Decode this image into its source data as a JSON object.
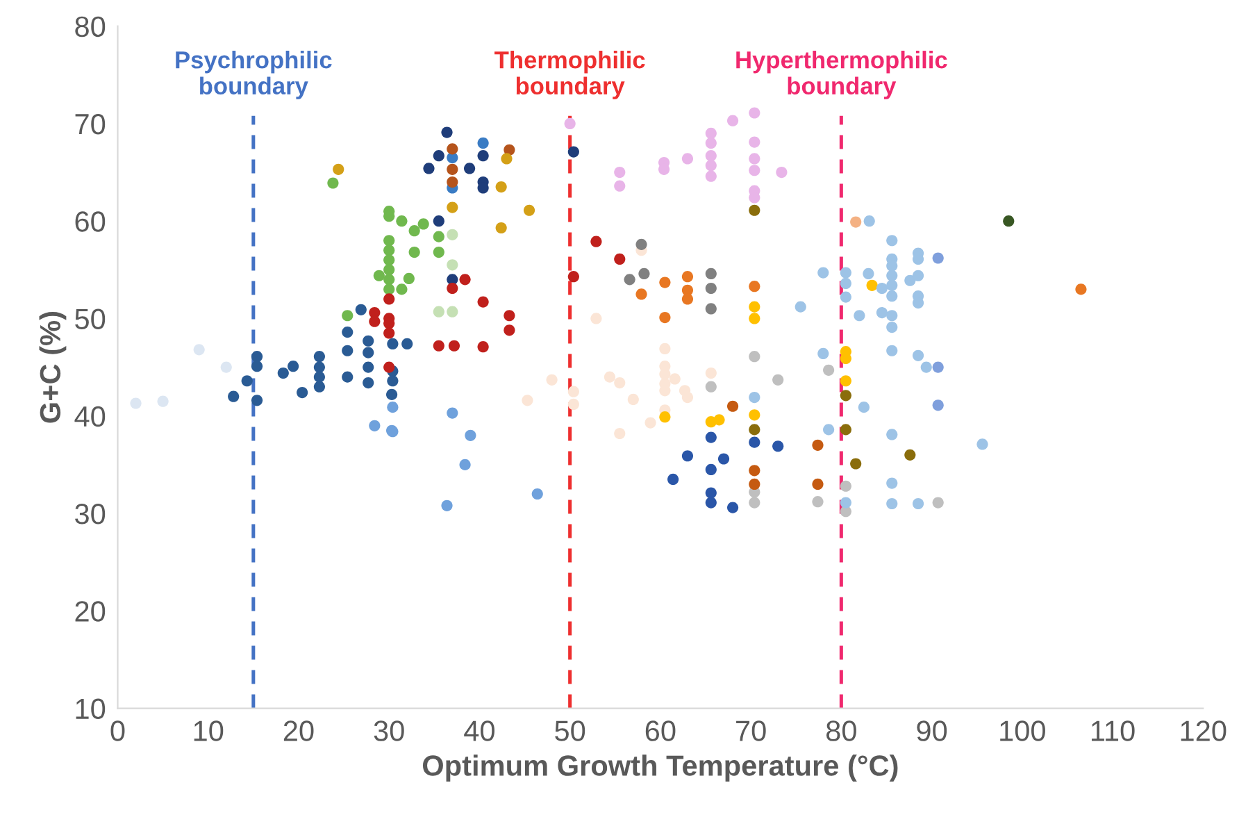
{
  "chart_data": {
    "type": "scatter",
    "xlabel": "Optimum Growth Temperature (°C)",
    "ylabel": "G+C (%)",
    "xlim": [
      0,
      120
    ],
    "ylim": [
      10,
      80
    ],
    "xticks": [
      0,
      10,
      20,
      30,
      40,
      50,
      60,
      70,
      80,
      90,
      100,
      110,
      120
    ],
    "yticks": [
      10,
      20,
      30,
      40,
      50,
      60,
      70,
      80
    ],
    "grid": false,
    "marker": "circle",
    "ref_lines": [
      {
        "axis": "x",
        "value": 15,
        "label": "Psychrophilic\nboundary",
        "color": "#4472c4",
        "line_style": "dashed"
      },
      {
        "axis": "x",
        "value": 50,
        "label": "Thermophilic\nboundary",
        "color": "#ee2f2f",
        "line_style": "dashed"
      },
      {
        "axis": "x",
        "value": 80,
        "label": "Hyperthermophilic\nboundary",
        "color": "#f0286e",
        "line_style": "dashed"
      }
    ],
    "series": [
      {
        "color": "#dce6f2",
        "x": [
          2,
          5,
          9,
          12
        ],
        "values": [
          41.3,
          41.5,
          46.8,
          45
        ]
      },
      {
        "color": "#2a5b94",
        "x": [
          12.8,
          14.3,
          15.4,
          15.4,
          15.4,
          18.3,
          19.4,
          20.4,
          22.3,
          22.3,
          22.3,
          22.3,
          25.4,
          25.4,
          25.4,
          26.9,
          27.7,
          27.7,
          27.7,
          27.7,
          30.3,
          30.4,
          32,
          30.4,
          30.4
        ],
        "values": [
          42,
          43.6,
          46.1,
          45.1,
          41.6,
          44.4,
          45.1,
          42.4,
          46.1,
          45,
          44,
          43,
          48.6,
          46.7,
          44,
          50.9,
          47.7,
          46.5,
          45,
          43.4,
          42.2,
          47.4,
          47.4,
          44.6,
          43.6
        ]
      },
      {
        "color": "#1f3d7a",
        "x": [
          36.4,
          35.5,
          34.4,
          38.9,
          40.4,
          40.4,
          40.4,
          35.5,
          50.4,
          37
        ],
        "values": [
          69.1,
          66.7,
          65.4,
          65.4,
          66.7,
          64,
          63.4,
          60,
          67.1,
          54
        ]
      },
      {
        "color": "#3a7cc4",
        "x": [
          40.4,
          37,
          37
        ],
        "values": [
          68,
          66.5,
          63.4
        ]
      },
      {
        "color": "#b5541c",
        "x": [
          37,
          43.3,
          37,
          37
        ],
        "values": [
          67.4,
          67.3,
          65.3,
          64
        ]
      },
      {
        "color": "#d4a017",
        "x": [
          43,
          42.4,
          37,
          45.5,
          42.4,
          24.4
        ],
        "values": [
          66.4,
          63.5,
          61.4,
          61.1,
          59.3,
          65.3
        ]
      },
      {
        "color": "#70b84e",
        "x": [
          23.8,
          28.9,
          25.4,
          30,
          30,
          30,
          30,
          30,
          30,
          30,
          30,
          31.4,
          32.8,
          33.8,
          35.5,
          32.8,
          35.5,
          32.2,
          31.4
        ],
        "values": [
          63.9,
          54.4,
          50.3,
          61,
          60.5,
          58,
          57,
          56,
          55,
          54,
          53,
          60,
          59,
          59.7,
          58.4,
          56.8,
          56.8,
          54.1,
          53
        ]
      },
      {
        "color": "#c5e0b4",
        "x": [
          37,
          37,
          35.5,
          37
        ],
        "values": [
          58.6,
          55.5,
          50.7,
          50.7
        ]
      },
      {
        "color": "#c0201c",
        "x": [
          30,
          30,
          30,
          30,
          30,
          28.4,
          28.4,
          38.4,
          37,
          40.4,
          43.3,
          43.3,
          35.5,
          37.2,
          40.4,
          50.4,
          52.9,
          55.5
        ],
        "values": [
          52,
          50,
          49.5,
          48.5,
          45,
          50.6,
          49.7,
          54,
          53.1,
          51.7,
          50.3,
          48.8,
          47.2,
          47.2,
          47.1,
          54.3,
          57.9,
          56.1
        ]
      },
      {
        "color": "#6fa1dc",
        "x": [
          28.4,
          30.3,
          37,
          39,
          38.4,
          46.4,
          36.4,
          30.4,
          30.4
        ],
        "values": [
          39,
          38.5,
          40.3,
          38,
          35,
          32,
          30.8,
          40.9,
          38.4
        ]
      },
      {
        "color": "#e8b4e8",
        "x": [
          50,
          55.5,
          55.5,
          60.4,
          60.4,
          63,
          65.6,
          65.6,
          65.6,
          65.6,
          65.6,
          68,
          70.4,
          70.4,
          70.4,
          70.4,
          70.4,
          70.4,
          73.4
        ],
        "values": [
          70,
          65,
          63.6,
          66,
          65.3,
          66.4,
          69,
          68,
          66.7,
          65.7,
          64.6,
          70.3,
          71.1,
          68.1,
          66.4,
          65.2,
          63.1,
          62.4,
          65
        ]
      },
      {
        "color": "#fbe5d6",
        "x": [
          52.9,
          45.3,
          48,
          50.4,
          50.4,
          54.4,
          55.5,
          55.5,
          57,
          58.9,
          60.5,
          60.5,
          60.5,
          60.5,
          60.5,
          60.5,
          61.6,
          62.7,
          63,
          65.6,
          57.9
        ],
        "values": [
          50,
          41.6,
          43.7,
          42.5,
          41.2,
          44,
          43.4,
          38.2,
          41.7,
          39.3,
          46.9,
          45.1,
          44.3,
          43.3,
          42.6,
          40.6,
          43.8,
          42.6,
          41.9,
          44.4,
          57
        ]
      },
      {
        "color": "#808080",
        "x": [
          57.9,
          56.6,
          58.2,
          65.6,
          65.6,
          65.6
        ],
        "values": [
          57.6,
          54,
          54.6,
          54.6,
          53.1,
          51
        ]
      },
      {
        "color": "#e87722",
        "x": [
          60.5,
          57.9,
          63,
          63,
          63,
          60.5,
          70.4,
          106.5
        ],
        "values": [
          53.7,
          52.5,
          54.3,
          52.9,
          52,
          50.1,
          53.3,
          53
        ]
      },
      {
        "color": "#f4b183",
        "x": [
          81.6
        ],
        "values": [
          59.9
        ]
      },
      {
        "color": "#ffc000",
        "x": [
          70.4,
          70.4,
          60.5,
          65.6,
          66.5,
          70.4,
          80.5,
          80.5,
          80.5,
          83.4
        ],
        "values": [
          51.2,
          50,
          39.9,
          39.4,
          39.6,
          40.1,
          46.6,
          45.9,
          43.6,
          53.4
        ]
      },
      {
        "color": "#8a6d0b",
        "x": [
          70.4,
          70.4,
          80.5,
          80.5,
          81.6,
          87.6
        ],
        "values": [
          61.1,
          38.6,
          42.1,
          38.6,
          35.1,
          36
        ]
      },
      {
        "color": "#bfbfbf",
        "x": [
          70.4,
          73,
          65.6,
          78.6,
          70.4,
          70.4,
          77.4,
          80.5,
          80.5,
          90.7
        ],
        "values": [
          46.1,
          43.7,
          43,
          44.7,
          32.2,
          31.1,
          31.2,
          32.8,
          30.2,
          31.1
        ]
      },
      {
        "color": "#2a56a8",
        "x": [
          65.6,
          63,
          61.4,
          65.6,
          67,
          65.6,
          65.6,
          68,
          70.4,
          73
        ],
        "values": [
          37.8,
          35.9,
          33.5,
          34.5,
          35.6,
          32.1,
          31.1,
          30.6,
          37.3,
          36.9
        ]
      },
      {
        "color": "#c55a11",
        "x": [
          68,
          77.4,
          70.4,
          70.4,
          77.4
        ],
        "values": [
          41,
          37,
          34.4,
          33,
          33
        ]
      },
      {
        "color": "#9dc3e6",
        "x": [
          75.5,
          70.4,
          82.5,
          83.1,
          85.6,
          88.5,
          88.5,
          85.6,
          85.6,
          85.6,
          78,
          80.5,
          80.5,
          80.5,
          83,
          84.5,
          85.6,
          87.6,
          88.5,
          85.6,
          88.5,
          88.5,
          82,
          84.5,
          85.6,
          85.6,
          85.6,
          88.5,
          89.4,
          78,
          78.6,
          85.6,
          95.6,
          85.6,
          80.5,
          85.6,
          88.5
        ],
        "values": [
          51.2,
          41.9,
          40.9,
          60,
          58,
          56.7,
          56.1,
          56.1,
          55.4,
          54.4,
          54.7,
          54.7,
          53.6,
          52.2,
          54.6,
          53.1,
          53.4,
          53.9,
          54.4,
          52.3,
          52.3,
          51.6,
          50.3,
          50.6,
          50.3,
          49.1,
          46.7,
          46.2,
          45,
          46.4,
          38.6,
          38.1,
          37.1,
          33.1,
          31.1,
          31,
          31
        ]
      },
      {
        "color": "#7f9fdc",
        "x": [
          90.7,
          90.7,
          90.7
        ],
        "values": [
          56.2,
          45,
          41.1
        ]
      },
      {
        "color": "#385723",
        "x": [
          98.5
        ],
        "values": [
          60
        ]
      }
    ]
  }
}
